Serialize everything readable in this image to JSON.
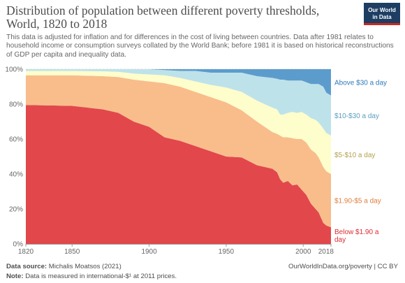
{
  "header": {
    "title": "Distribution of population between different poverty thresholds, World, 1820 to 2018",
    "subtitle": "This data is adjusted for inflation and for differences in the cost of living between countries. Data after 1981 relates to household income or consumption surveys collated by the World Bank; before 1981 it is based on historical reconstructions of GDP per capita and inequality data.",
    "logo_line1": "Our World",
    "logo_line2": "in Data"
  },
  "footer": {
    "source_label": "Data source:",
    "source_text": "Michalis Moatsos (2021)",
    "note_label": "Note:",
    "note_text": "Data is measured in international-$¹ at 2011 prices.",
    "link": "OurWorldInData.org/poverty | CC BY"
  },
  "chart_data": {
    "type": "area",
    "stacked": true,
    "percent": true,
    "title": "Distribution of population between different poverty thresholds, World, 1820 to 2018",
    "xlabel": "",
    "ylabel": "",
    "xlim": [
      1820,
      2018
    ],
    "ylim": [
      0,
      100
    ],
    "x_ticks": [
      {
        "label": "1820",
        "value": 1820
      },
      {
        "label": "1850",
        "value": 1850
      },
      {
        "label": "1900",
        "value": 1900
      },
      {
        "label": "1950",
        "value": 1950
      },
      {
        "label": "2000",
        "value": 2000
      },
      {
        "label": "2018",
        "value": 2018
      }
    ],
    "y_ticks": [
      {
        "label": "0%",
        "value": 0
      },
      {
        "label": "20%",
        "value": 20
      },
      {
        "label": "40%",
        "value": 40
      },
      {
        "label": "60%",
        "value": 60
      },
      {
        "label": "80%",
        "value": 80
      },
      {
        "label": "100%",
        "value": 100
      }
    ],
    "grid": "horizontal dashed",
    "x": [
      1820,
      1850,
      1870,
      1880,
      1890,
      1900,
      1910,
      1920,
      1930,
      1940,
      1950,
      1960,
      1970,
      1980,
      1983,
      1985,
      1987,
      1990,
      1993,
      1996,
      1999,
      2002,
      2005,
      2008,
      2010,
      2013,
      2015,
      2018
    ],
    "series": [
      {
        "name": "Below $1.90 a day",
        "color": "#e2474c",
        "label_color": "#dc2c32",
        "values": [
          79.5,
          79,
          77,
          75,
          70,
          67,
          61,
          59,
          56,
          53,
          50,
          49.5,
          45,
          43,
          41,
          37,
          35,
          36,
          33.5,
          34,
          31,
          28,
          23,
          20,
          18,
          12,
          10.5,
          9.5
        ]
      },
      {
        "name": "$1.90-$5 a day",
        "color": "#f8bd8b",
        "label_color": "#e07d3b",
        "values": [
          17,
          17.5,
          19,
          20.5,
          24,
          26,
          31,
          31,
          31,
          31,
          31,
          27,
          25,
          21,
          22,
          25,
          26,
          25,
          27,
          26,
          29,
          30,
          31,
          32,
          31.5,
          32,
          31,
          30.5
        ]
      },
      {
        "name": "$5-$10 a day",
        "color": "#fefdcc",
        "label_color": "#b3a04b",
        "values": [
          2.5,
          2.5,
          2.8,
          3,
          3.5,
          4,
          4.5,
          5,
          6,
          7,
          8.5,
          10.5,
          12,
          14,
          14,
          12,
          13,
          14,
          15,
          15,
          15.5,
          16,
          18,
          19,
          20,
          22,
          22,
          22
        ]
      },
      {
        "name": "$10-$30 a day",
        "color": "#bee2ea",
        "label_color": "#5b9ec1",
        "values": [
          1,
          1,
          1.2,
          1.5,
          2.5,
          3,
          3,
          4,
          6,
          7,
          8.5,
          11,
          14,
          17,
          17.5,
          20,
          20,
          18.5,
          18,
          18.5,
          18,
          18.5,
          19.5,
          20.5,
          22,
          24,
          23,
          23
        ]
      },
      {
        "name": "Above $30 a day",
        "color": "#5c9ccd",
        "label_color": "#2f7ab9",
        "values": [
          0,
          0,
          0,
          0,
          0,
          0,
          0.5,
          1,
          1,
          2,
          2,
          2,
          4,
          5,
          5.5,
          6,
          6,
          6.5,
          6.5,
          6.5,
          6.5,
          7.5,
          8.5,
          8.5,
          8.5,
          10,
          13.5,
          15
        ]
      }
    ]
  }
}
